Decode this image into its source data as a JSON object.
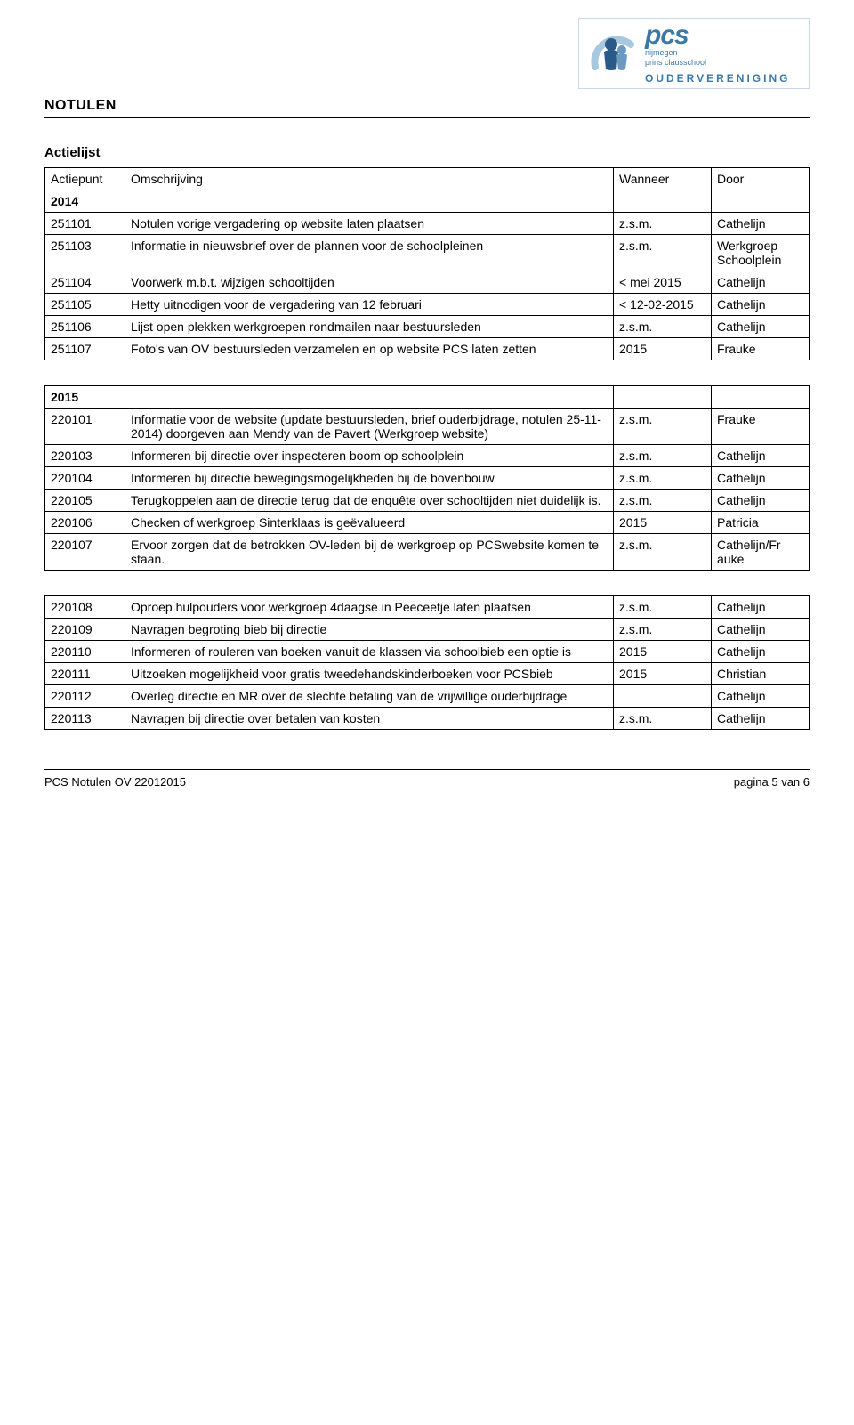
{
  "logo": {
    "pcs": "pcs",
    "line1": "nijmegen",
    "line2": "prins clausschool",
    "sub": "OUDERVERENIGING"
  },
  "title": "NOTULEN",
  "section_heading": "Actielijst",
  "table1": {
    "header": {
      "c1": "Actiepunt",
      "c2": "Omschrijving",
      "c3": "Wanneer",
      "c4": "Door"
    },
    "year_row": "2014",
    "rows": [
      {
        "id": "251101",
        "desc": "Notulen vorige vergadering op website laten plaatsen",
        "when": "z.s.m.",
        "who": "Cathelijn"
      },
      {
        "id": "251103",
        "desc": "Informatie in nieuwsbrief over de plannen voor de schoolpleinen",
        "when": "z.s.m.",
        "who": "Werkgroep Schoolplein"
      },
      {
        "id": "251104",
        "desc": "Voorwerk m.b.t. wijzigen schooltijden",
        "when": "< mei 2015",
        "who": "Cathelijn"
      },
      {
        "id": "251105",
        "desc": "Hetty uitnodigen voor de vergadering van 12 februari",
        "when": "< 12-02-2015",
        "who": "Cathelijn"
      },
      {
        "id": "251106",
        "desc": "Lijst open plekken werkgroepen rondmailen naar bestuursleden",
        "when": "z.s.m.",
        "who": "Cathelijn"
      },
      {
        "id": "251107",
        "desc": "Foto's van OV bestuursleden verzamelen en op website PCS laten zetten",
        "when": "2015",
        "who": "Frauke"
      }
    ]
  },
  "table2": {
    "year_row": "2015",
    "rows": [
      {
        "id": "220101",
        "desc": "Informatie voor de website (update bestuursleden, brief ouderbijdrage, notulen 25-11-2014) doorgeven aan Mendy van de Pavert (Werkgroep website)",
        "when": "z.s.m.",
        "who": "Frauke"
      },
      {
        "id": "220103",
        "desc": "Informeren bij directie over inspecteren boom op schoolplein",
        "when": "z.s.m.",
        "who": "Cathelijn"
      },
      {
        "id": "220104",
        "desc": "Informeren bij directie bewegingsmogelijkheden bij de bovenbouw",
        "when": "z.s.m.",
        "who": "Cathelijn"
      },
      {
        "id": "220105",
        "desc": "Terugkoppelen aan de directie terug dat de enquête over schooltijden niet duidelijk is.",
        "when": "z.s.m.",
        "who": "Cathelijn"
      },
      {
        "id": "220106",
        "desc": "Checken of werkgroep Sinterklaas is geëvalueerd",
        "when": "2015",
        "who": "Patricia"
      },
      {
        "id": "220107",
        "desc": "Ervoor zorgen dat de betrokken OV-leden bij de werkgroep op PCSwebsite komen te staan.",
        "when": "z.s.m.",
        "who": "Cathelijn/Fr auke"
      }
    ]
  },
  "table3": {
    "rows": [
      {
        "id": "220108",
        "desc": "Oproep hulpouders voor werkgroep 4daagse in Peeceetje laten plaatsen",
        "when": "z.s.m.",
        "who": "Cathelijn"
      },
      {
        "id": "220109",
        "desc": "Navragen begroting bieb bij directie",
        "when": "z.s.m.",
        "who": "Cathelijn"
      },
      {
        "id": "220110",
        "desc": "Informeren of rouleren van boeken vanuit de klassen via schoolbieb een optie is",
        "when": "2015",
        "who": "Cathelijn"
      },
      {
        "id": "220111",
        "desc": "Uitzoeken mogelijkheid voor gratis tweedehandskinderboeken voor PCSbieb",
        "when": "2015",
        "who": "Christian"
      },
      {
        "id": "220112",
        "desc": "Overleg directie en MR over de slechte betaling van de vrijwillige ouderbijdrage",
        "when": "",
        "who": "Cathelijn"
      },
      {
        "id": "220113",
        "desc": "Navragen bij directie over betalen van kosten",
        "when": "z.s.m.",
        "who": "Cathelijn"
      }
    ]
  },
  "footer": {
    "left": "PCS Notulen OV 22012015",
    "right": "pagina 5 van 6"
  }
}
